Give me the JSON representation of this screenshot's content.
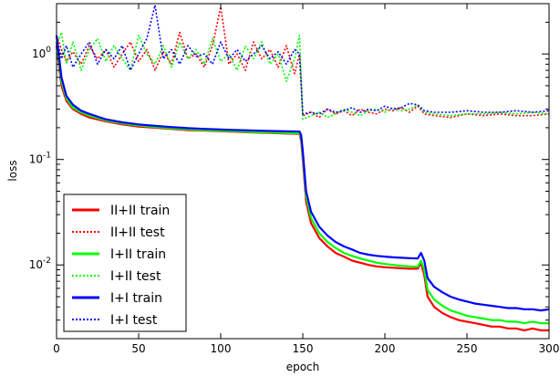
{
  "chart_data": {
    "type": "line",
    "xlabel": "epoch",
    "ylabel": "loss",
    "xlim": [
      0,
      300
    ],
    "ylim": [
      0.002,
      3.0
    ],
    "yscale": "log",
    "grid": false,
    "legend_position": "bottom-left",
    "x_ticks": [
      {
        "value": 0,
        "label": "0"
      },
      {
        "value": 50,
        "label": "50"
      },
      {
        "value": 100,
        "label": "100"
      },
      {
        "value": 150,
        "label": "150"
      },
      {
        "value": 200,
        "label": "200"
      },
      {
        "value": 250,
        "label": "250"
      },
      {
        "value": 300,
        "label": "300"
      }
    ],
    "y_ticks": [
      {
        "value": 1,
        "base": "10",
        "exp": "0"
      },
      {
        "value": 0.1,
        "base": "10",
        "exp": "-1"
      },
      {
        "value": 0.01,
        "base": "10",
        "exp": "-2"
      }
    ],
    "series": [
      {
        "name": "II+II train",
        "color": "#ff0000",
        "style": "solid",
        "x": [
          0,
          3,
          6,
          10,
          15,
          20,
          30,
          40,
          50,
          60,
          70,
          80,
          90,
          100,
          110,
          120,
          130,
          140,
          148,
          149,
          150,
          152,
          155,
          160,
          165,
          170,
          175,
          180,
          185,
          190,
          195,
          200,
          205,
          210,
          215,
          220,
          222,
          224,
          226,
          230,
          235,
          240,
          245,
          250,
          255,
          260,
          265,
          270,
          275,
          280,
          285,
          290,
          295,
          300
        ],
        "y": [
          1.2,
          0.5,
          0.36,
          0.3,
          0.27,
          0.25,
          0.23,
          0.215,
          0.205,
          0.2,
          0.195,
          0.19,
          0.188,
          0.185,
          0.183,
          0.18,
          0.178,
          0.176,
          0.175,
          0.15,
          0.1,
          0.04,
          0.025,
          0.018,
          0.015,
          0.013,
          0.012,
          0.011,
          0.0105,
          0.01,
          0.0097,
          0.0095,
          0.0094,
          0.0093,
          0.0092,
          0.0092,
          0.0105,
          0.008,
          0.005,
          0.004,
          0.0035,
          0.0032,
          0.003,
          0.0029,
          0.0028,
          0.0027,
          0.0026,
          0.0026,
          0.0025,
          0.0025,
          0.0024,
          0.0025,
          0.0024,
          0.0024
        ]
      },
      {
        "name": "II+II test",
        "color": "#ff0000",
        "style": "dotted",
        "x": [
          0,
          3,
          6,
          10,
          15,
          20,
          25,
          30,
          35,
          40,
          45,
          50,
          55,
          60,
          65,
          70,
          75,
          80,
          85,
          90,
          95,
          100,
          105,
          110,
          115,
          120,
          125,
          130,
          135,
          140,
          145,
          148,
          150,
          155,
          160,
          165,
          170,
          175,
          180,
          185,
          190,
          195,
          200,
          205,
          210,
          215,
          220,
          224,
          230,
          240,
          250,
          260,
          270,
          280,
          290,
          300
        ],
        "y": [
          1.5,
          1.1,
          0.85,
          1.05,
          0.8,
          1.2,
          0.9,
          1.1,
          0.75,
          1.0,
          1.3,
          0.85,
          1.1,
          0.7,
          1.05,
          0.8,
          1.6,
          0.9,
          1.0,
          0.75,
          1.2,
          2.8,
          0.8,
          1.0,
          0.7,
          1.3,
          0.9,
          1.1,
          0.75,
          1.2,
          0.65,
          1.0,
          0.26,
          0.28,
          0.25,
          0.3,
          0.27,
          0.29,
          0.26,
          0.3,
          0.28,
          0.27,
          0.3,
          0.29,
          0.31,
          0.28,
          0.32,
          0.27,
          0.26,
          0.25,
          0.27,
          0.26,
          0.27,
          0.26,
          0.26,
          0.27
        ]
      },
      {
        "name": "I+II train",
        "color": "#00ff00",
        "style": "solid",
        "x": [
          0,
          3,
          6,
          10,
          15,
          20,
          30,
          40,
          50,
          60,
          70,
          80,
          90,
          100,
          110,
          120,
          130,
          140,
          148,
          149,
          150,
          152,
          155,
          160,
          165,
          170,
          175,
          180,
          185,
          190,
          195,
          200,
          205,
          210,
          215,
          220,
          222,
          224,
          226,
          230,
          235,
          240,
          245,
          250,
          255,
          260,
          265,
          270,
          275,
          280,
          285,
          290,
          295,
          300
        ],
        "y": [
          1.3,
          0.55,
          0.38,
          0.31,
          0.28,
          0.26,
          0.235,
          0.22,
          0.21,
          0.203,
          0.198,
          0.193,
          0.19,
          0.187,
          0.185,
          0.182,
          0.18,
          0.178,
          0.177,
          0.16,
          0.11,
          0.045,
          0.028,
          0.02,
          0.0165,
          0.0145,
          0.013,
          0.0122,
          0.0115,
          0.011,
          0.0105,
          0.0102,
          0.01,
          0.0098,
          0.0097,
          0.0096,
          0.011,
          0.009,
          0.0058,
          0.0047,
          0.0041,
          0.0037,
          0.0035,
          0.0033,
          0.0032,
          0.0031,
          0.003,
          0.003,
          0.0029,
          0.0029,
          0.0028,
          0.0029,
          0.0028,
          0.0028
        ]
      },
      {
        "name": "I+II test",
        "color": "#00ff00",
        "style": "dotted",
        "x": [
          0,
          3,
          6,
          10,
          15,
          20,
          25,
          30,
          35,
          40,
          45,
          50,
          55,
          60,
          65,
          70,
          75,
          80,
          85,
          90,
          95,
          100,
          105,
          110,
          115,
          120,
          125,
          130,
          135,
          140,
          145,
          148,
          150,
          155,
          160,
          165,
          170,
          175,
          180,
          185,
          190,
          195,
          200,
          205,
          210,
          215,
          220,
          224,
          230,
          240,
          250,
          260,
          270,
          280,
          290,
          300
        ],
        "y": [
          1.2,
          1.6,
          0.8,
          1.3,
          0.7,
          1.1,
          1.4,
          0.85,
          1.2,
          0.9,
          0.7,
          1.5,
          1.0,
          0.8,
          1.2,
          0.75,
          1.3,
          0.9,
          1.1,
          0.8,
          1.4,
          0.85,
          1.0,
          0.7,
          1.2,
          0.9,
          1.3,
          0.8,
          1.0,
          0.55,
          0.9,
          1.5,
          0.24,
          0.26,
          0.28,
          0.25,
          0.27,
          0.3,
          0.28,
          0.26,
          0.29,
          0.3,
          0.28,
          0.31,
          0.29,
          0.3,
          0.33,
          0.28,
          0.27,
          0.26,
          0.27,
          0.27,
          0.28,
          0.27,
          0.28,
          0.27
        ]
      },
      {
        "name": "I+I train",
        "color": "#0000ff",
        "style": "solid",
        "x": [
          0,
          3,
          6,
          10,
          15,
          20,
          30,
          40,
          50,
          60,
          70,
          80,
          90,
          100,
          110,
          120,
          130,
          140,
          148,
          149,
          150,
          152,
          155,
          160,
          165,
          170,
          175,
          180,
          185,
          190,
          195,
          200,
          205,
          210,
          215,
          220,
          222,
          224,
          226,
          230,
          235,
          240,
          245,
          250,
          255,
          260,
          265,
          270,
          275,
          280,
          285,
          290,
          295,
          300
        ],
        "y": [
          1.5,
          0.6,
          0.4,
          0.33,
          0.29,
          0.27,
          0.24,
          0.225,
          0.215,
          0.208,
          0.203,
          0.198,
          0.195,
          0.192,
          0.19,
          0.188,
          0.186,
          0.185,
          0.184,
          0.17,
          0.12,
          0.05,
          0.032,
          0.023,
          0.019,
          0.0165,
          0.015,
          0.014,
          0.013,
          0.0125,
          0.0122,
          0.012,
          0.0118,
          0.0117,
          0.0116,
          0.0115,
          0.013,
          0.011,
          0.0075,
          0.0062,
          0.0055,
          0.005,
          0.0047,
          0.0045,
          0.0043,
          0.0042,
          0.0041,
          0.004,
          0.0039,
          0.0039,
          0.0038,
          0.0038,
          0.0037,
          0.0038
        ]
      },
      {
        "name": "I+I test",
        "color": "#0000ff",
        "style": "dotted",
        "x": [
          0,
          3,
          6,
          10,
          15,
          20,
          25,
          30,
          35,
          40,
          45,
          50,
          55,
          60,
          65,
          70,
          75,
          80,
          85,
          90,
          95,
          100,
          105,
          110,
          115,
          120,
          125,
          130,
          135,
          140,
          145,
          148,
          150,
          155,
          160,
          165,
          170,
          175,
          180,
          185,
          190,
          195,
          200,
          205,
          210,
          215,
          220,
          224,
          230,
          240,
          250,
          260,
          270,
          280,
          290,
          300
        ],
        "y": [
          1.4,
          0.9,
          1.2,
          0.75,
          1.0,
          1.3,
          0.8,
          1.1,
          0.9,
          1.2,
          0.7,
          1.0,
          1.4,
          2.9,
          0.9,
          1.1,
          0.8,
          1.2,
          0.95,
          1.0,
          0.8,
          1.3,
          0.9,
          1.1,
          0.85,
          1.0,
          1.2,
          0.9,
          1.05,
          0.8,
          1.1,
          1.0,
          0.27,
          0.28,
          0.27,
          0.3,
          0.28,
          0.29,
          0.31,
          0.28,
          0.3,
          0.29,
          0.32,
          0.3,
          0.31,
          0.34,
          0.33,
          0.29,
          0.28,
          0.28,
          0.29,
          0.28,
          0.28,
          0.29,
          0.28,
          0.29
        ]
      }
    ]
  }
}
